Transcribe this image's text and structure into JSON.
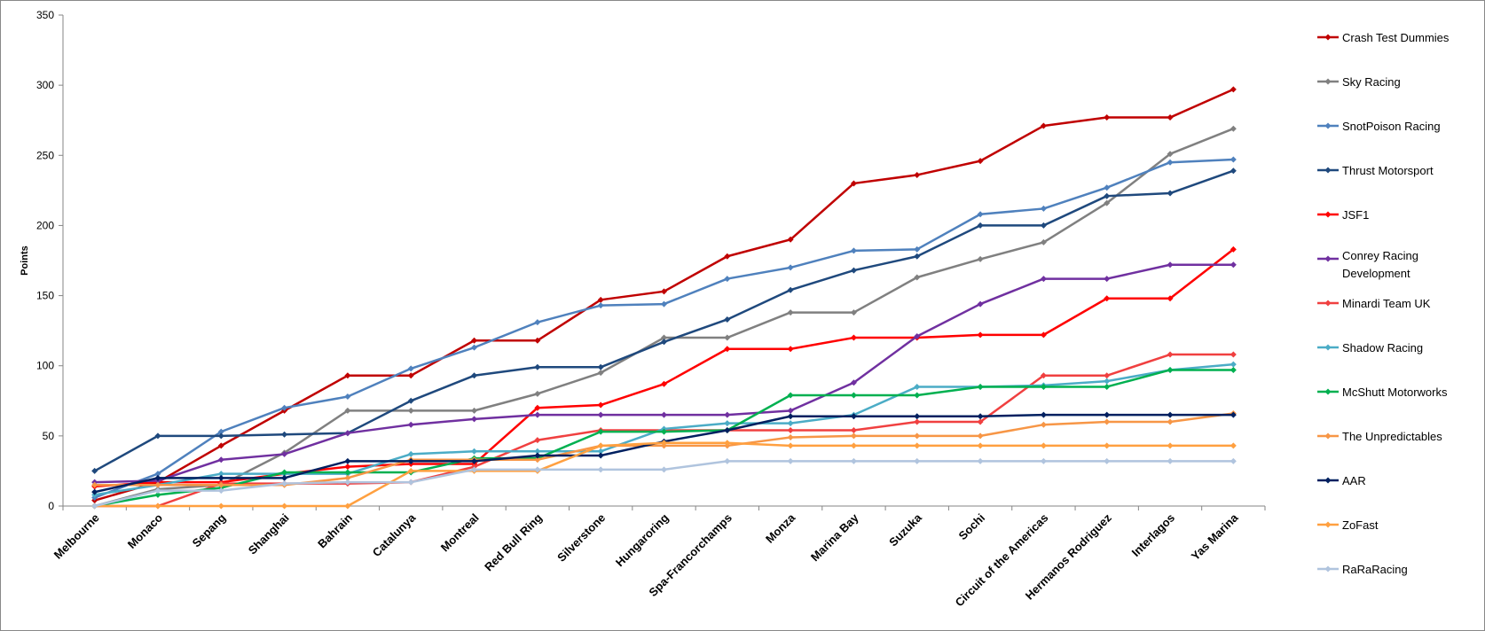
{
  "chart_data": {
    "type": "line",
    "title": "",
    "xlabel": "",
    "ylabel": "Points",
    "ylim": [
      0,
      350
    ],
    "yticks": [
      0,
      50,
      100,
      150,
      200,
      250,
      300,
      350
    ],
    "grid": false,
    "legend_position": "right",
    "categories": [
      "Melbourne",
      "Monaco",
      "Sepang",
      "Shanghai",
      "Bahrain",
      "Catalunya",
      "Montreal",
      "Red Bull Ring",
      "Silverstone",
      "Hungaroring",
      "Spa-Francorchamps",
      "Monza",
      "Marina Bay",
      "Suzuka",
      "Sochi",
      "Circuit of the Americas",
      "Hermanos Rodriguez",
      "Interlagos",
      "Yas Marina"
    ],
    "series": [
      {
        "name": "Crash Test Dummies",
        "color": "#C00000",
        "values": [
          4,
          17,
          43,
          68,
          93,
          93,
          118,
          118,
          147,
          153,
          178,
          190,
          230,
          236,
          246,
          271,
          277,
          277,
          297
        ]
      },
      {
        "name": "Sky Racing",
        "color": "#808080",
        "values": [
          0,
          12,
          15,
          38,
          68,
          68,
          68,
          80,
          95,
          120,
          120,
          138,
          138,
          163,
          176,
          188,
          216,
          251,
          269
        ]
      },
      {
        "name": "SnotPoison Racing",
        "color": "#4F81BD",
        "values": [
          6,
          23,
          53,
          70,
          78,
          98,
          113,
          131,
          143,
          144,
          162,
          170,
          182,
          183,
          208,
          212,
          227,
          245,
          247
        ]
      },
      {
        "name": "Thrust Motorsport",
        "color": "#1F497D",
        "values": [
          25,
          50,
          50,
          51,
          52,
          75,
          93,
          99,
          99,
          117,
          133,
          154,
          168,
          178,
          200,
          200,
          221,
          223,
          239
        ]
      },
      {
        "name": "JSF1",
        "color": "#FF0000",
        "values": [
          14,
          17,
          17,
          23,
          28,
          30,
          30,
          70,
          72,
          87,
          112,
          112,
          120,
          120,
          122,
          122,
          148,
          148,
          183
        ]
      },
      {
        "name": "Conrey Racing Development",
        "color": "#7030A0",
        "values": [
          17,
          18,
          33,
          37,
          52,
          58,
          62,
          65,
          65,
          65,
          65,
          68,
          88,
          121,
          144,
          162,
          162,
          172,
          172
        ]
      },
      {
        "name": "Minardi Team UK",
        "color": "#F04040",
        "values": [
          0,
          0,
          16,
          16,
          16,
          17,
          28,
          47,
          54,
          54,
          54,
          54,
          54,
          60,
          60,
          93,
          93,
          108,
          108
        ]
      },
      {
        "name": "Shadow Racing",
        "color": "#4BACC6",
        "values": [
          8,
          15,
          23,
          23,
          23,
          37,
          39,
          39,
          39,
          55,
          59,
          59,
          65,
          85,
          85,
          86,
          89,
          97,
          101
        ]
      },
      {
        "name": "McShutt Motorworks",
        "color": "#00B050",
        "values": [
          0,
          8,
          13,
          24,
          24,
          24,
          34,
          34,
          53,
          53,
          54,
          79,
          79,
          79,
          85,
          85,
          85,
          97,
          97
        ]
      },
      {
        "name": "The Unpredictables",
        "color": "#F79646",
        "values": [
          15,
          15,
          15,
          15,
          20,
          33,
          33,
          33,
          43,
          43,
          43,
          49,
          50,
          50,
          50,
          58,
          60,
          60,
          66
        ]
      },
      {
        "name": "AAR",
        "color": "#002060",
        "values": [
          10,
          20,
          20,
          20,
          32,
          32,
          32,
          36,
          36,
          46,
          54,
          64,
          64,
          64,
          64,
          65,
          65,
          65,
          65
        ]
      },
      {
        "name": "ZoFast",
        "color": "#FFA040",
        "values": [
          0,
          0,
          0,
          0,
          0,
          25,
          25,
          25,
          43,
          45,
          45,
          43,
          43,
          43,
          43,
          43,
          43,
          43,
          43
        ]
      },
      {
        "name": "RaRaRacing",
        "color": "#B0C4DE",
        "values": [
          0,
          11,
          11,
          16,
          17,
          17,
          26,
          26,
          26,
          26,
          32,
          32,
          32,
          32,
          32,
          32,
          32,
          32,
          32
        ]
      }
    ]
  }
}
